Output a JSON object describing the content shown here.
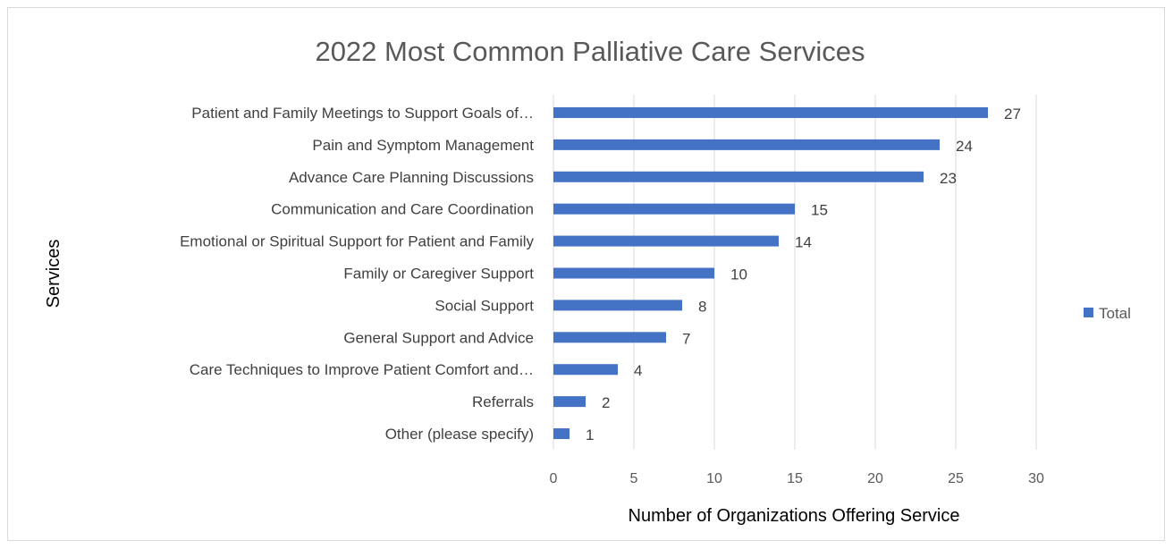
{
  "chart_data": {
    "type": "bar",
    "orientation": "horizontal",
    "title": "2022 Most Common Palliative Care Services",
    "xlabel": "Number of Organizations Offering Service",
    "ylabel": "Services",
    "xlim": [
      0,
      30
    ],
    "xticks": [
      0,
      5,
      10,
      15,
      20,
      25,
      30
    ],
    "grid": true,
    "legend_position": "right",
    "categories": [
      "Patient and Family Meetings to Support Goals of…",
      "Pain and Symptom Management",
      "Advance Care Planning Discussions",
      "Communication and Care Coordination",
      "Emotional or Spiritual Support for Patient and Family",
      "Family or Caregiver Support",
      "Social Support",
      "General Support and Advice",
      "Care Techniques to Improve Patient Comfort and…",
      "Referrals",
      "Other (please specify)"
    ],
    "series": [
      {
        "name": "Total",
        "color": "#4472c4",
        "values": [
          27,
          24,
          23,
          15,
          14,
          10,
          8,
          7,
          4,
          2,
          1
        ]
      }
    ]
  }
}
